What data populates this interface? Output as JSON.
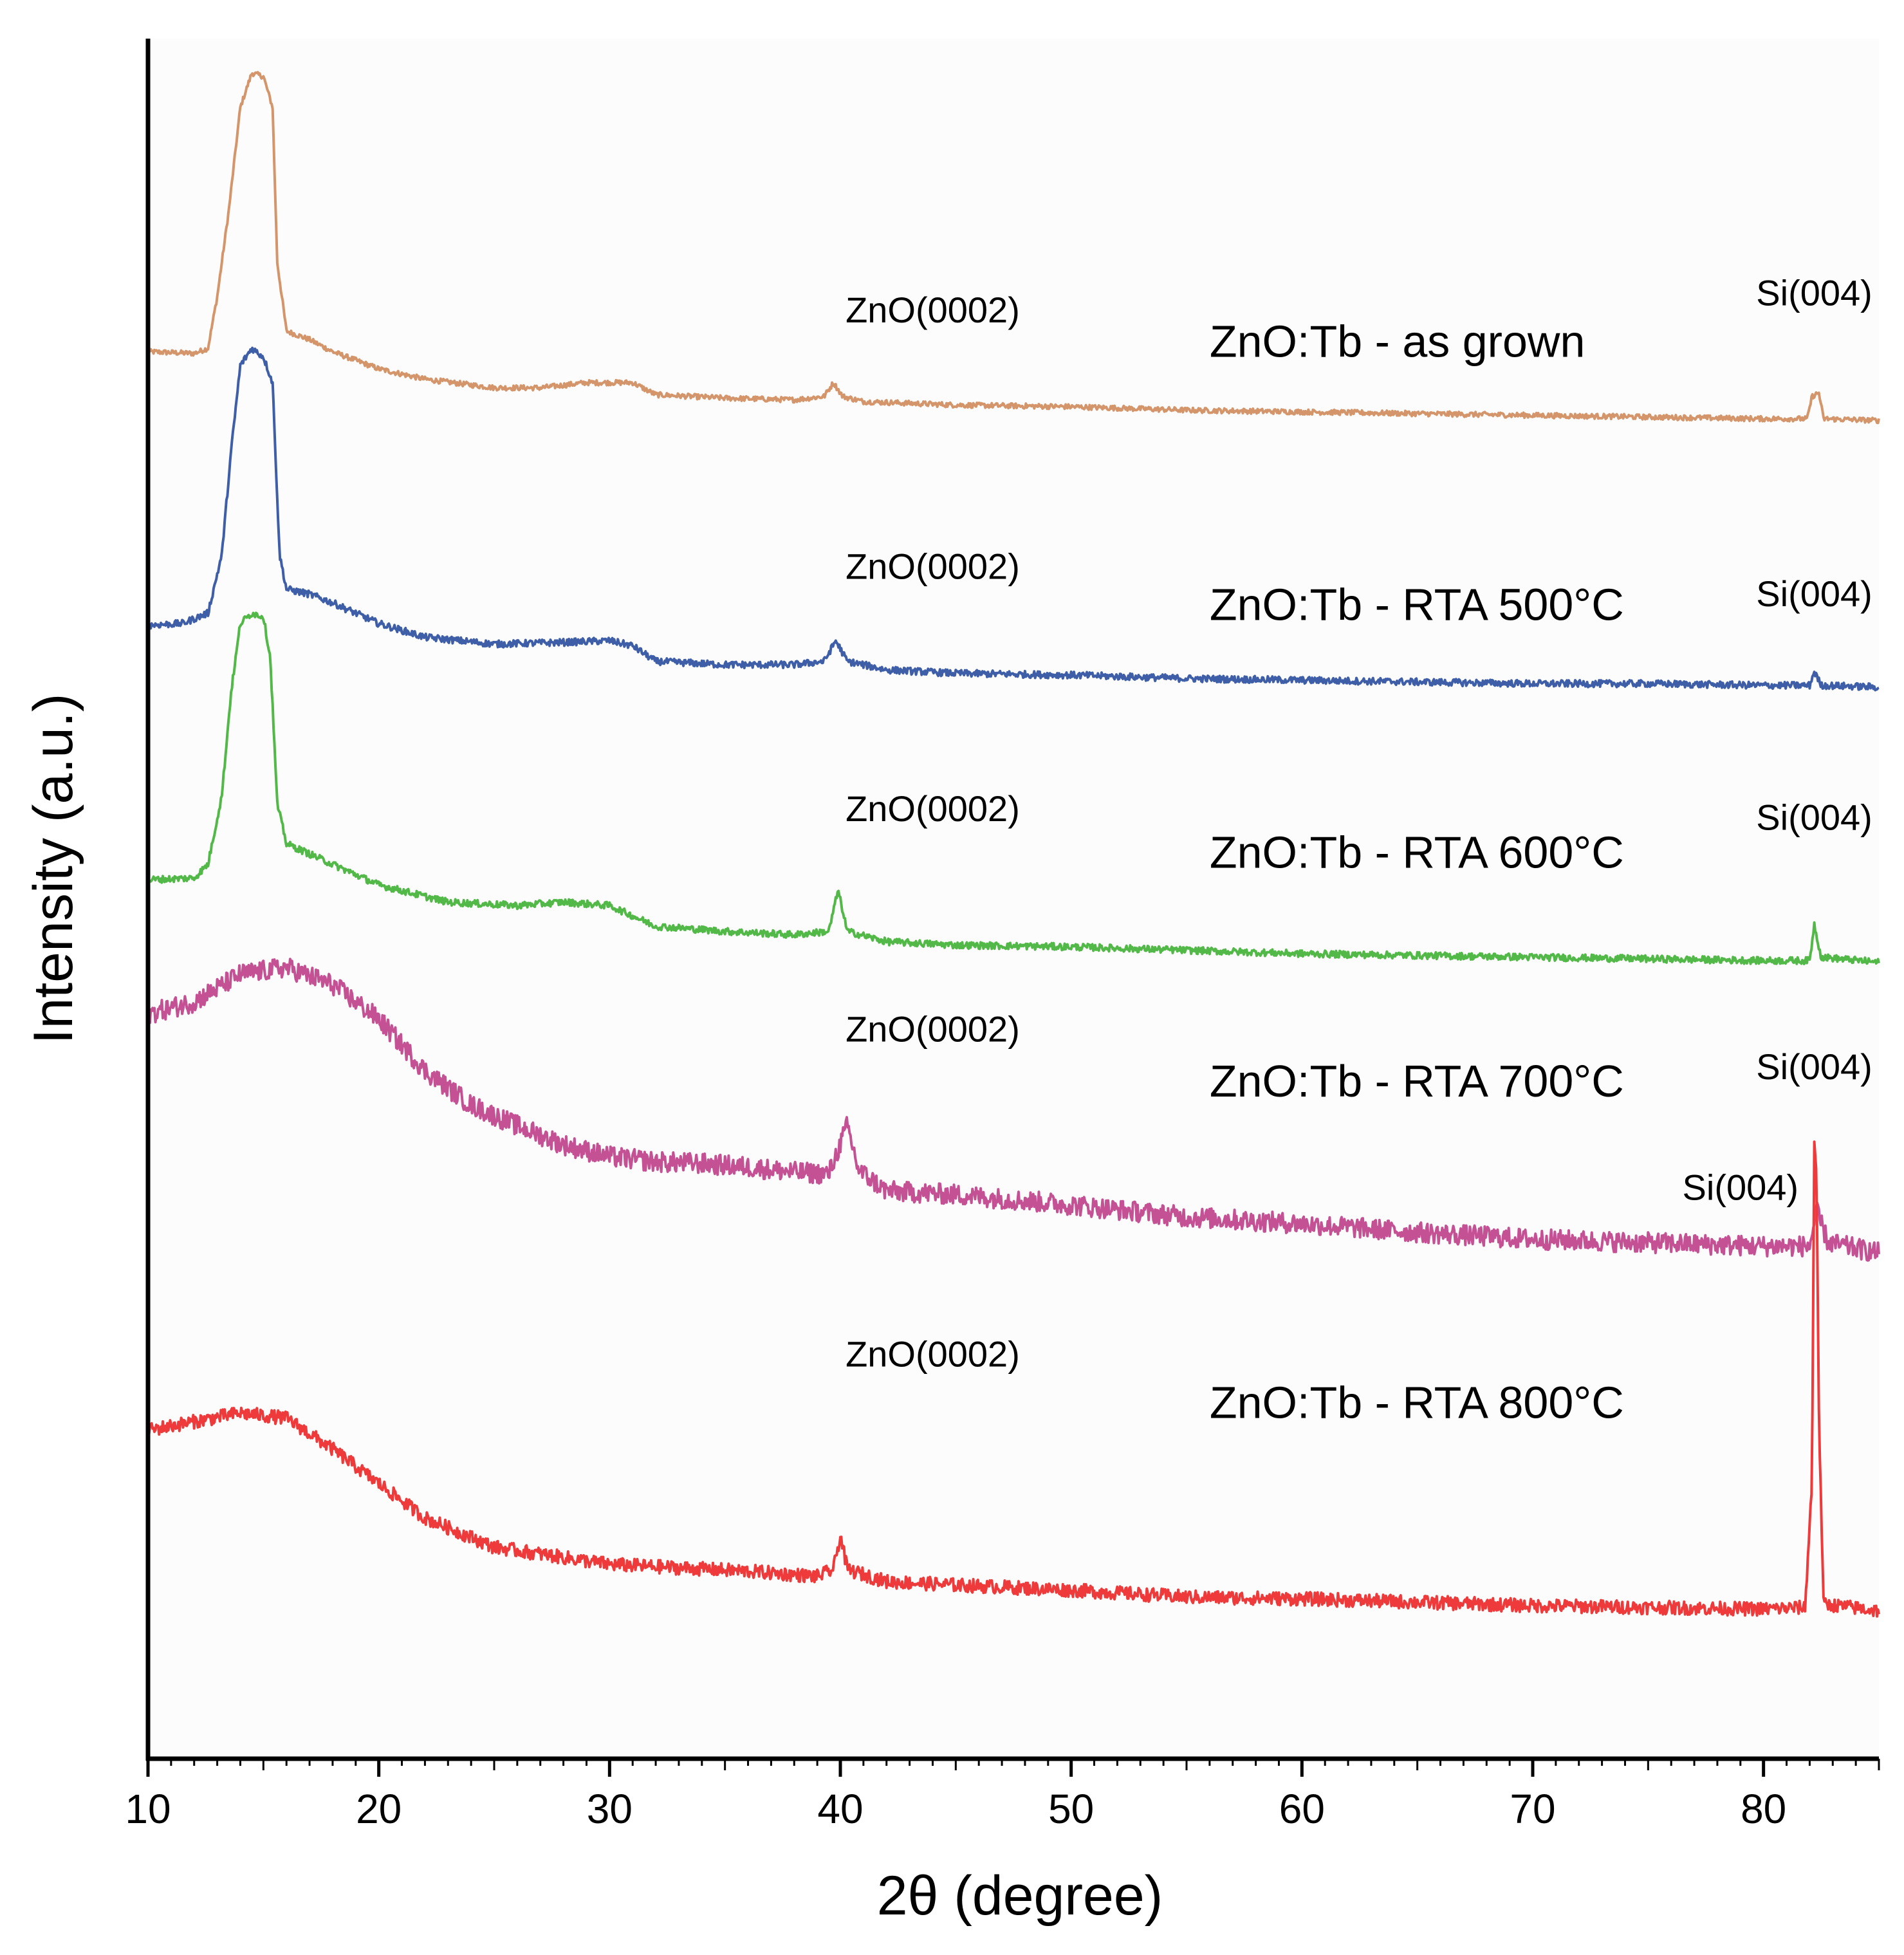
{
  "chart_data": {
    "type": "line",
    "title": "",
    "xlabel": "2θ (degree)",
    "ylabel": "Intensity (a.u.)",
    "xlim": [
      10,
      85
    ],
    "xticks": [
      10,
      20,
      30,
      40,
      50,
      60,
      70,
      80
    ],
    "ylim": [
      0,
      1000
    ],
    "y_ticks_shown": false,
    "grid": false,
    "legend": "inline labels to the right of each trace",
    "offset_traces": true,
    "series": [
      {
        "name": "ZnO:Tb - as grown",
        "color": "#d4956a",
        "noise": 1.5,
        "points": [
          [
            10,
            818
          ],
          [
            12,
            817
          ],
          [
            12.6,
            820
          ],
          [
            13,
            850
          ],
          [
            13.5,
            900
          ],
          [
            14,
            960
          ],
          [
            14.5,
            980
          ],
          [
            15,
            978
          ],
          [
            15.4,
            960
          ],
          [
            15.6,
            870
          ],
          [
            16,
            830
          ],
          [
            17,
            825
          ],
          [
            18,
            818
          ],
          [
            20,
            808
          ],
          [
            22,
            802
          ],
          [
            25,
            797
          ],
          [
            27,
            797
          ],
          [
            29,
            800
          ],
          [
            31,
            800
          ],
          [
            32,
            793
          ],
          [
            35,
            791
          ],
          [
            38,
            790
          ],
          [
            39.3,
            792
          ],
          [
            39.7,
            800
          ],
          [
            40.1,
            792
          ],
          [
            41,
            789
          ],
          [
            45,
            787
          ],
          [
            50,
            786
          ],
          [
            55,
            784
          ],
          [
            60,
            783
          ],
          [
            65,
            782
          ],
          [
            70,
            781
          ],
          [
            75,
            780
          ],
          [
            80,
            779
          ],
          [
            81.9,
            779
          ],
          [
            82.1,
            792
          ],
          [
            82.4,
            794
          ],
          [
            82.6,
            779
          ],
          [
            85,
            778
          ]
        ]
      },
      {
        "name": "ZnO:Tb - RTA 500°C",
        "color": "#3e5ea8",
        "noise": 2,
        "points": [
          [
            10,
            659
          ],
          [
            11.5,
            660
          ],
          [
            12.6,
            666
          ],
          [
            13.2,
            700
          ],
          [
            13.6,
            760
          ],
          [
            14,
            810
          ],
          [
            14.5,
            820
          ],
          [
            15,
            815
          ],
          [
            15.4,
            800
          ],
          [
            15.7,
            700
          ],
          [
            16,
            680
          ],
          [
            17,
            677
          ],
          [
            18,
            672
          ],
          [
            20,
            660
          ],
          [
            22,
            652
          ],
          [
            25,
            648
          ],
          [
            28,
            649
          ],
          [
            30,
            650
          ],
          [
            31,
            647
          ],
          [
            32,
            638
          ],
          [
            35,
            636
          ],
          [
            38,
            636
          ],
          [
            39.3,
            638
          ],
          [
            39.8,
            650
          ],
          [
            40.3,
            638
          ],
          [
            42,
            633
          ],
          [
            45,
            631
          ],
          [
            50,
            630
          ],
          [
            55,
            628
          ],
          [
            60,
            627
          ],
          [
            65,
            626
          ],
          [
            70,
            625
          ],
          [
            75,
            625
          ],
          [
            80,
            624
          ],
          [
            82,
            624
          ],
          [
            82.2,
            632
          ],
          [
            82.5,
            624
          ],
          [
            85,
            623
          ]
        ]
      },
      {
        "name": "ZnO:Tb - RTA 600°C",
        "color": "#52b848",
        "noise": 2,
        "points": [
          [
            10,
            511
          ],
          [
            12,
            512
          ],
          [
            12.6,
            520
          ],
          [
            13.2,
            560
          ],
          [
            13.6,
            620
          ],
          [
            14,
            660
          ],
          [
            14.5,
            666
          ],
          [
            15,
            664
          ],
          [
            15.3,
            640
          ],
          [
            15.6,
            555
          ],
          [
            16,
            532
          ],
          [
            18,
            520
          ],
          [
            20,
            508
          ],
          [
            23,
            498
          ],
          [
            26,
            496
          ],
          [
            28,
            498
          ],
          [
            30,
            496
          ],
          [
            32,
            484
          ],
          [
            35,
            481
          ],
          [
            38,
            479
          ],
          [
            39.5,
            481
          ],
          [
            39.9,
            505
          ],
          [
            40.3,
            481
          ],
          [
            42,
            475
          ],
          [
            45,
            473
          ],
          [
            50,
            472
          ],
          [
            55,
            470
          ],
          [
            60,
            468
          ],
          [
            65,
            467
          ],
          [
            70,
            466
          ],
          [
            75,
            465
          ],
          [
            80,
            464
          ],
          [
            82,
            464
          ],
          [
            82.2,
            485
          ],
          [
            82.5,
            466
          ],
          [
            85,
            463
          ]
        ]
      },
      {
        "name": "ZnO:Tb - RTA 700°C",
        "color": "#c55195",
        "noise": 6,
        "points": [
          [
            10,
            433
          ],
          [
            12,
            440
          ],
          [
            14,
            456
          ],
          [
            16,
            460
          ],
          [
            18,
            450
          ],
          [
            20,
            430
          ],
          [
            22,
            400
          ],
          [
            24,
            380
          ],
          [
            26,
            368
          ],
          [
            28,
            357
          ],
          [
            30,
            350
          ],
          [
            32,
            347
          ],
          [
            34,
            346
          ],
          [
            36,
            344
          ],
          [
            38,
            341
          ],
          [
            39.5,
            340
          ],
          [
            40.3,
            368
          ],
          [
            40.8,
            342
          ],
          [
            42,
            330
          ],
          [
            45,
            328
          ],
          [
            50,
            322
          ],
          [
            55,
            315
          ],
          [
            60,
            311
          ],
          [
            65,
            306
          ],
          [
            70,
            302
          ],
          [
            75,
            300
          ],
          [
            80,
            298
          ],
          [
            82,
            298
          ],
          [
            82.3,
            318
          ],
          [
            82.8,
            300
          ],
          [
            85,
            294
          ]
        ]
      },
      {
        "name": "ZnO:Tb - RTA 800°C",
        "color": "#ee3a3a",
        "noise": 4,
        "points": [
          [
            10,
            191
          ],
          [
            12,
            196
          ],
          [
            14,
            201
          ],
          [
            16,
            198
          ],
          [
            18,
            180
          ],
          [
            20,
            160
          ],
          [
            22,
            140
          ],
          [
            25,
            123
          ],
          [
            28,
            117
          ],
          [
            30,
            113
          ],
          [
            33,
            111
          ],
          [
            36,
            109
          ],
          [
            39,
            106
          ],
          [
            39.7,
            110
          ],
          [
            40,
            130
          ],
          [
            40.3,
            110
          ],
          [
            42,
            103
          ],
          [
            45,
            101
          ],
          [
            50,
            98
          ],
          [
            55,
            94
          ],
          [
            60,
            93
          ],
          [
            65,
            91
          ],
          [
            70,
            89
          ],
          [
            75,
            88
          ],
          [
            80,
            87
          ],
          [
            81.8,
            88
          ],
          [
            82.1,
            160
          ],
          [
            82.2,
            360
          ],
          [
            82.3,
            340
          ],
          [
            82.4,
            200
          ],
          [
            82.6,
            90
          ],
          [
            85,
            86
          ]
        ]
      }
    ],
    "labels": {
      "series_labels": [
        "ZnO:Tb - as grown",
        "ZnO:Tb - RTA 500°C",
        "ZnO:Tb - RTA 600°C",
        "ZnO:Tb - RTA 700°C",
        "ZnO:Tb - RTA 800°C"
      ],
      "znO_peak": "ZnO(0002)",
      "si_peak": "Si(004)"
    },
    "annotations": [
      {
        "text": "ZnO(0002)",
        "x": 44,
        "y": 835
      },
      {
        "text": "Si(004)",
        "x": 82.2,
        "y": 845
      },
      {
        "text": "ZnO(0002)",
        "x": 44,
        "y": 686
      },
      {
        "text": "Si(004)",
        "x": 82.2,
        "y": 670
      },
      {
        "text": "ZnO(0002)",
        "x": 44,
        "y": 545
      },
      {
        "text": "Si(004)",
        "x": 82.2,
        "y": 540
      },
      {
        "text": "ZnO(0002)",
        "x": 44,
        "y": 417
      },
      {
        "text": "Si(004)",
        "x": 82.2,
        "y": 395
      },
      {
        "text": "ZnO(0002)",
        "x": 44,
        "y": 228
      },
      {
        "text": "Si(004)",
        "x": 79,
        "y": 325
      }
    ],
    "series_label_positions": [
      {
        "x": 56,
        "y": 815
      },
      {
        "x": 56,
        "y": 662
      },
      {
        "x": 56,
        "y": 518
      },
      {
        "x": 56,
        "y": 385
      },
      {
        "x": 56,
        "y": 198
      }
    ]
  }
}
